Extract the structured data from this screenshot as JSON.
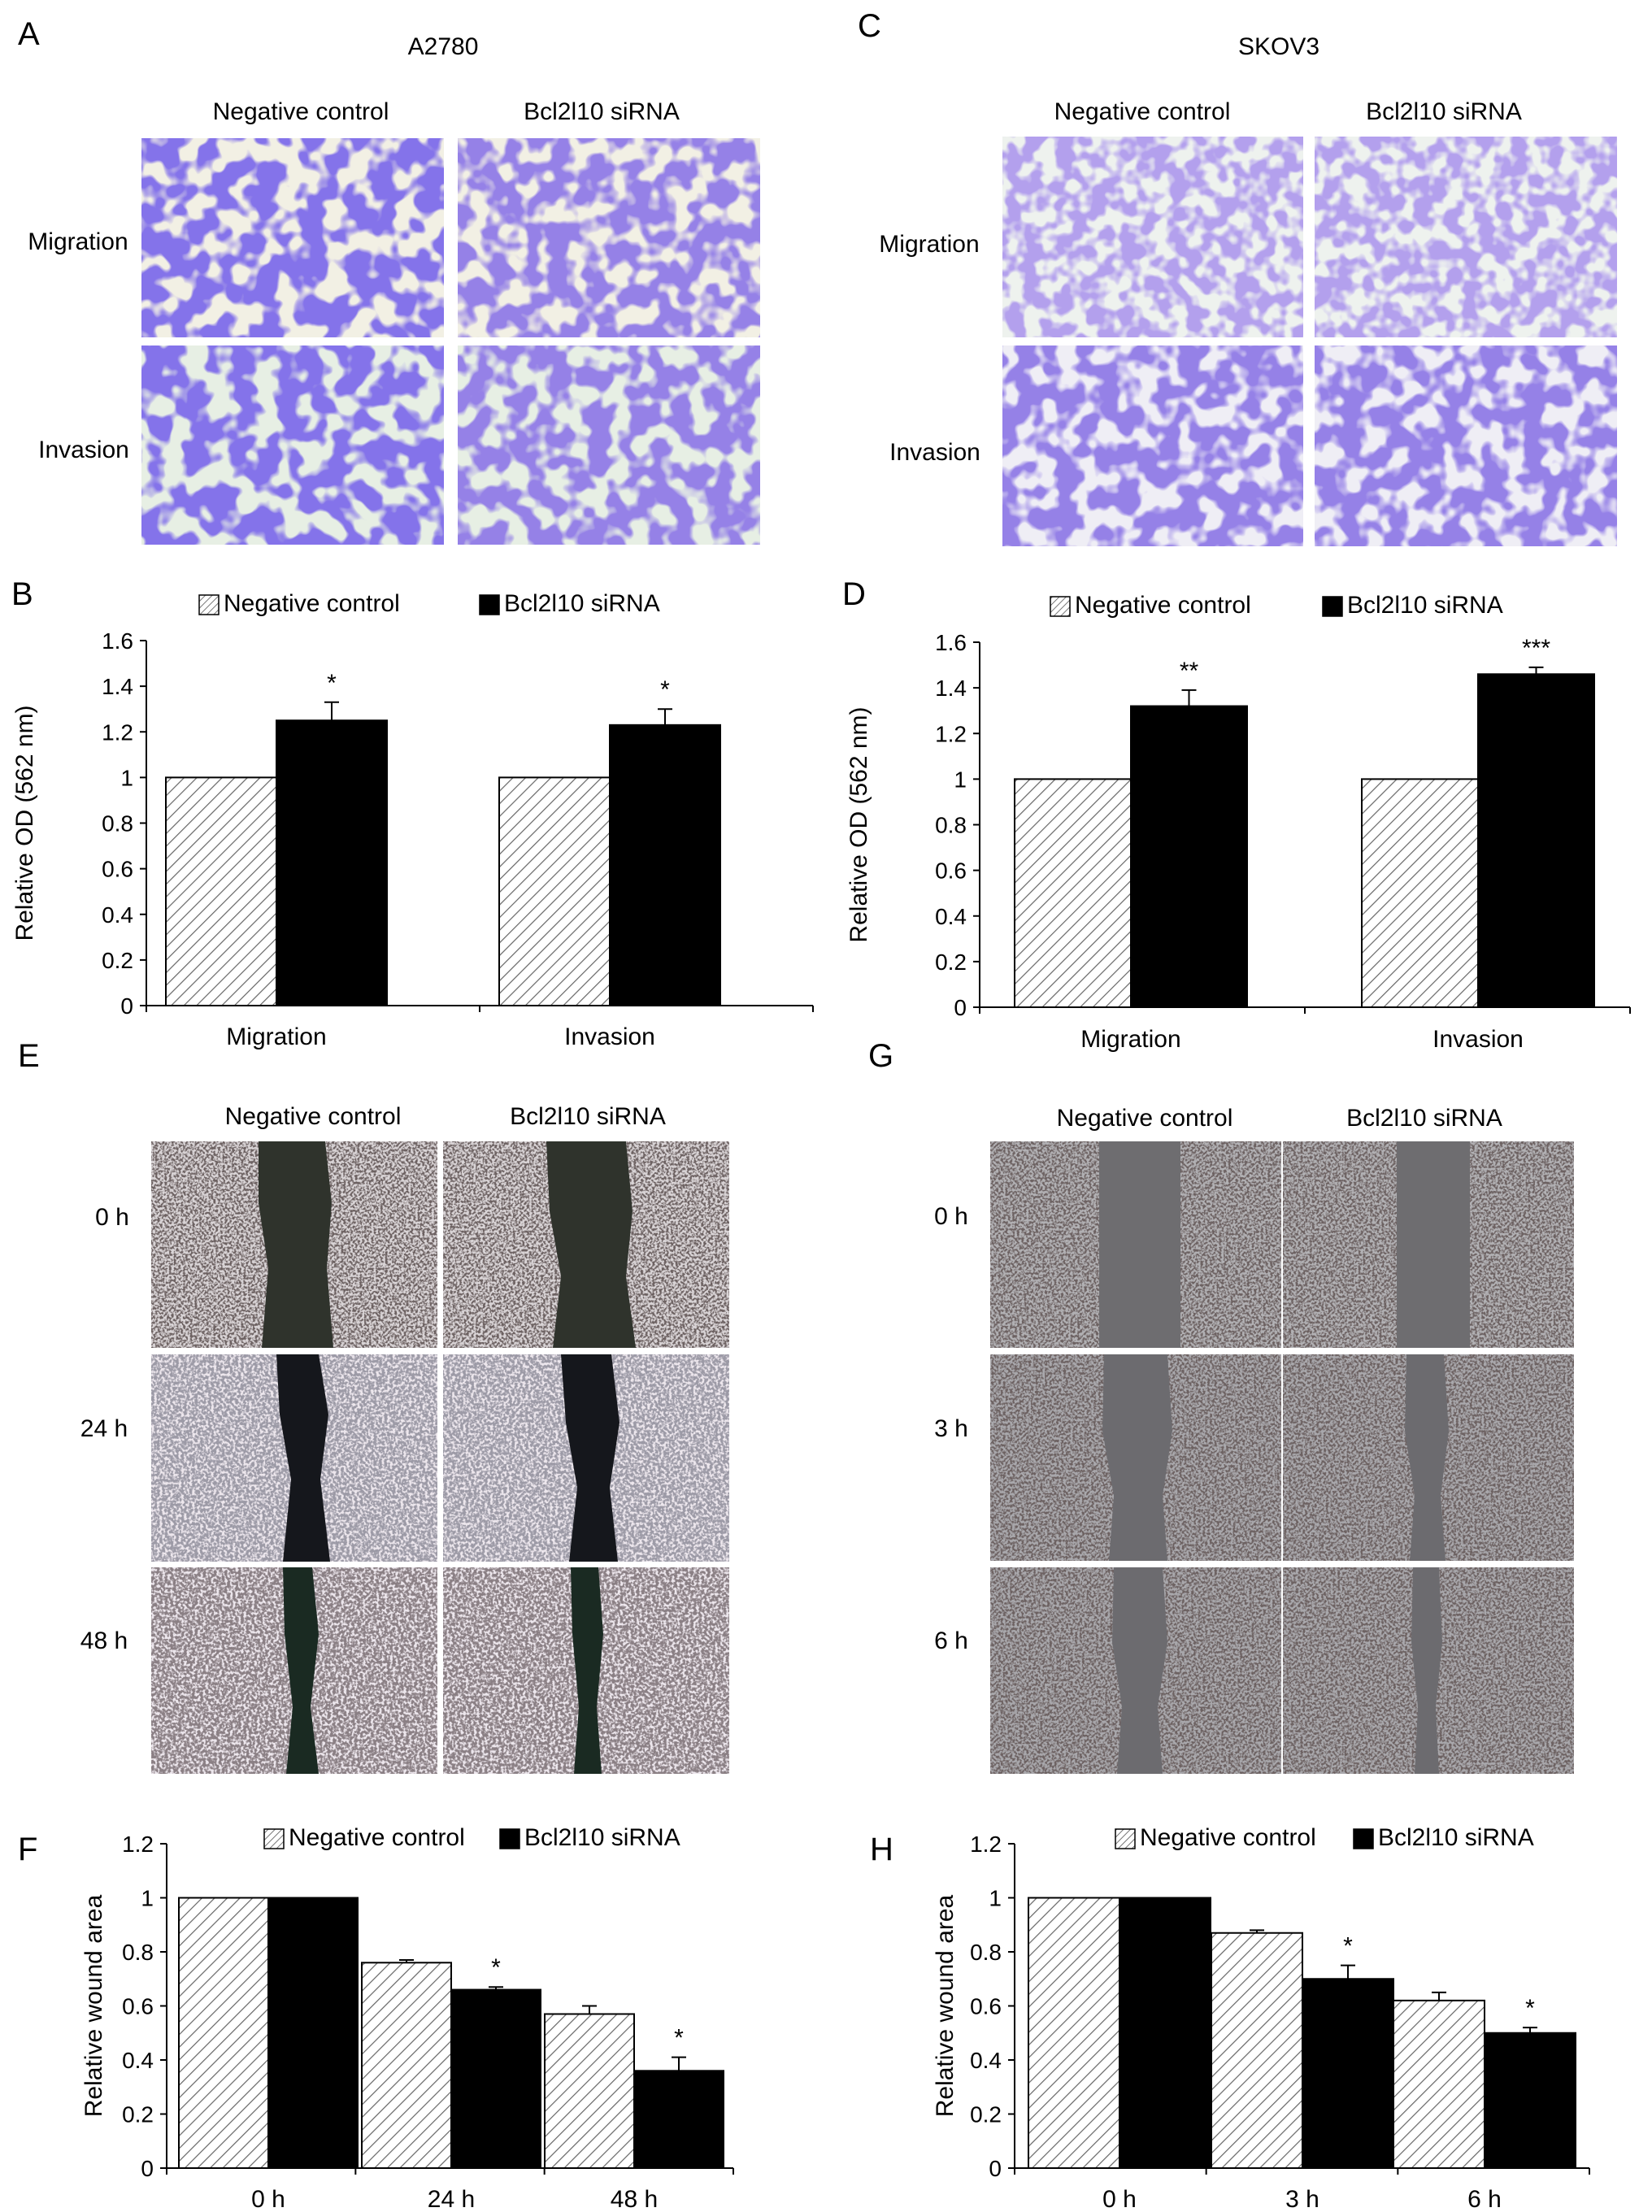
{
  "panel_letters": {
    "a": "A",
    "b": "B",
    "c": "C",
    "d": "D",
    "e": "E",
    "f": "F",
    "g": "G",
    "h": "H"
  },
  "cell_lines": {
    "left": "A2780",
    "right": "SKOV3"
  },
  "column_labels": {
    "negative": "Negative control",
    "sirna": "Bcl2l10 siRNA"
  },
  "row_labels_transwell": [
    "Migration",
    "Invasion"
  ],
  "row_labels_wound_left": [
    "0 h",
    "24 h",
    "48 h"
  ],
  "row_labels_wound_right": [
    "0 h",
    "3 h",
    "6 h"
  ],
  "colors": {
    "negative_fill": "hatched",
    "sirna_fill": "#000000",
    "stain_purple": "#3a2bd0",
    "stain_light_purple": "#7a5fd6"
  },
  "chart_data": [
    {
      "panel": "B",
      "type": "bar",
      "categories": [
        "Migration",
        "Invasion"
      ],
      "series": [
        {
          "name": "Negative control",
          "values": [
            1.0,
            1.0
          ],
          "errors": [
            0,
            0
          ]
        },
        {
          "name": "Bcl2l10 siRNA",
          "values": [
            1.25,
            1.23
          ],
          "errors": [
            0.08,
            0.07
          ]
        }
      ],
      "significance": [
        "*",
        "*"
      ],
      "ylabel": "Relative OD (562 nm)",
      "ylim": [
        0,
        1.6
      ],
      "yticks": [
        "0",
        "0.2",
        "0.4",
        "0.6",
        "0.8",
        "1",
        "1.2",
        "1.4",
        "1.6"
      ],
      "legend": "top"
    },
    {
      "panel": "D",
      "type": "bar",
      "categories": [
        "Migration",
        "Invasion"
      ],
      "series": [
        {
          "name": "Negative control",
          "values": [
            1.0,
            1.0
          ],
          "errors": [
            0,
            0
          ]
        },
        {
          "name": "Bcl2l10 siRNA",
          "values": [
            1.32,
            1.46
          ],
          "errors": [
            0.07,
            0.03
          ]
        }
      ],
      "significance": [
        "**",
        "***"
      ],
      "ylabel": "Relative OD (562 nm)",
      "ylim": [
        0,
        1.6
      ],
      "yticks": [
        "0",
        "0.2",
        "0.4",
        "0.6",
        "0.8",
        "1",
        "1.2",
        "1.4",
        "1.6"
      ],
      "legend": "top"
    },
    {
      "panel": "F",
      "type": "bar",
      "categories": [
        "0 h",
        "24 h",
        "48 h"
      ],
      "series": [
        {
          "name": "Negative control",
          "values": [
            1.0,
            0.76,
            0.57
          ],
          "errors": [
            0,
            0.01,
            0.03
          ]
        },
        {
          "name": "Bcl2l10 siRNA",
          "values": [
            1.0,
            0.66,
            0.36
          ],
          "errors": [
            0,
            0.01,
            0.05
          ]
        }
      ],
      "significance": [
        "",
        "*",
        "*"
      ],
      "ylabel": "Relative wound area",
      "ylim": [
        0,
        1.2
      ],
      "yticks": [
        "0",
        "0.2",
        "0.4",
        "0.6",
        "0.8",
        "1",
        "1.2"
      ],
      "legend": "top"
    },
    {
      "panel": "H",
      "type": "bar",
      "categories": [
        "0 h",
        "3 h",
        "6 h"
      ],
      "series": [
        {
          "name": "Negative control",
          "values": [
            1.0,
            0.87,
            0.62
          ],
          "errors": [
            0,
            0.01,
            0.03
          ]
        },
        {
          "name": "Bcl2l10 siRNA",
          "values": [
            1.0,
            0.7,
            0.5
          ],
          "errors": [
            0,
            0.05,
            0.02
          ]
        }
      ],
      "significance": [
        "",
        "*",
        "*"
      ],
      "ylabel": "Relative wound area",
      "ylim": [
        0,
        1.2
      ],
      "yticks": [
        "0",
        "0.2",
        "0.4",
        "0.6",
        "0.8",
        "1",
        "1.2"
      ],
      "legend": "top"
    }
  ]
}
